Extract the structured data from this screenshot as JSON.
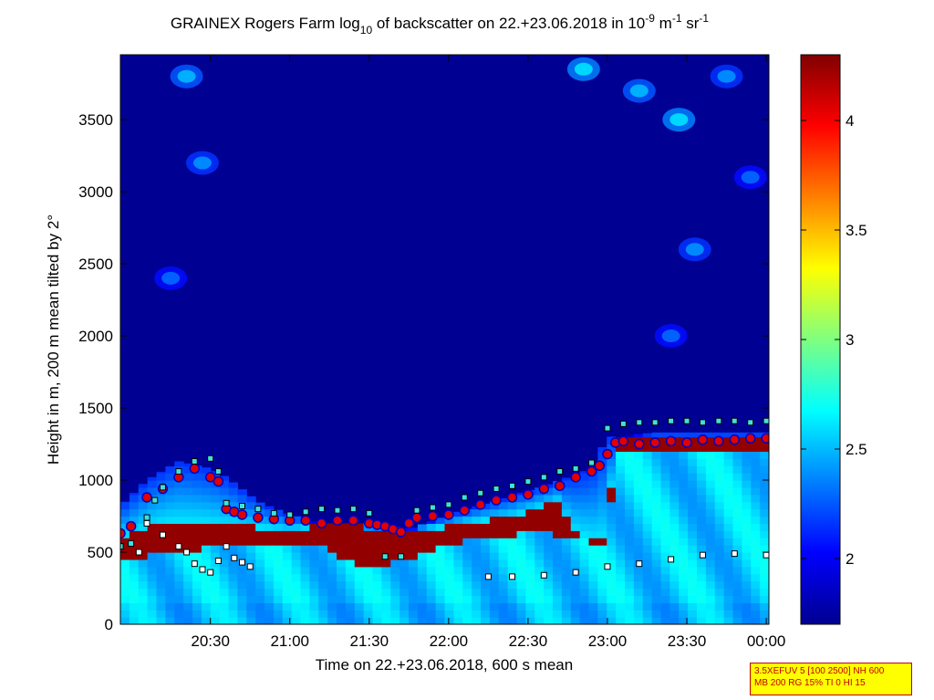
{
  "title": {
    "main": "GRAINEX Rogers Farm log",
    "log_sub": "10",
    "after_log": " of backscatter on 22.+23.06.2018 in 10",
    "exp1": "-9",
    "unit1": " m",
    "exp2": "-1",
    "unit2": " sr",
    "exp3": "-1"
  },
  "info_box": {
    "line1": "3.5XEFUV 5 [100 2500] NH 600",
    "line2": "MB 200 RG 15% TI 0 HI 15"
  },
  "chart_data": {
    "type": "heatmap",
    "xlabel": "Time on 22.+23.06.2018, 600 s mean",
    "ylabel": "Height in m, 200 m mean tilted by 2°",
    "x_unit": "hours after 20:00 (22.06.2018)",
    "xlim": [
      -0.0667,
      4.0167
    ],
    "ylim": [
      0,
      3950
    ],
    "x_ticks": [
      {
        "value": 0.5,
        "label": "20:30"
      },
      {
        "value": 1.0,
        "label": "21:00"
      },
      {
        "value": 1.5,
        "label": "21:30"
      },
      {
        "value": 2.0,
        "label": "22:00"
      },
      {
        "value": 2.5,
        "label": "22:30"
      },
      {
        "value": 3.0,
        "label": "23:00"
      },
      {
        "value": 3.5,
        "label": "23:30"
      },
      {
        "value": 4.0,
        "label": "00:00"
      }
    ],
    "y_ticks": [
      0,
      500,
      1000,
      1500,
      2000,
      2500,
      3000,
      3500
    ],
    "colorbar": {
      "clim": [
        1.7,
        4.3
      ],
      "ticks": [
        "2",
        "2.5",
        "3",
        "3.5",
        "4"
      ],
      "colormap": "jet"
    },
    "background_value": 1.75,
    "aerosol_top_profile": [
      [
        -0.0667,
        820
      ],
      [
        0.1,
        1000
      ],
      [
        0.3,
        1130
      ],
      [
        0.5,
        1080
      ],
      [
        0.6,
        1020
      ],
      [
        0.8,
        850
      ],
      [
        1.0,
        760
      ],
      [
        1.2,
        700
      ],
      [
        1.4,
        700
      ],
      [
        1.55,
        700
      ],
      [
        1.75,
        660
      ],
      [
        2.0,
        760
      ],
      [
        2.3,
        860
      ],
      [
        2.6,
        960
      ],
      [
        2.9,
        1080
      ],
      [
        3.0,
        1300
      ],
      [
        3.3,
        1330
      ],
      [
        3.7,
        1330
      ],
      [
        4.0167,
        1330
      ]
    ],
    "aerosol_layer_base_value": 2.55,
    "strong_layer": {
      "value": 4.25,
      "top": [
        [
          -0.0667,
          600
        ],
        [
          0.05,
          650
        ],
        [
          0.15,
          700
        ],
        [
          0.25,
          720
        ],
        [
          0.4,
          720
        ],
        [
          0.55,
          700
        ],
        [
          0.75,
          680
        ],
        [
          1.0,
          650
        ],
        [
          1.2,
          690
        ],
        [
          1.4,
          690
        ],
        [
          1.5,
          650
        ],
        [
          1.7,
          620
        ],
        [
          1.8,
          650
        ],
        [
          2.0,
          680
        ],
        [
          2.2,
          720
        ],
        [
          2.4,
          750
        ],
        [
          2.6,
          820
        ],
        [
          2.7,
          860
        ],
        [
          2.75,
          700
        ],
        [
          2.8,
          650
        ],
        [
          2.9,
          600
        ],
        [
          3.0,
          600
        ],
        [
          3.05,
          1300
        ],
        [
          3.3,
          1290
        ],
        [
          3.6,
          1280
        ],
        [
          3.9,
          1280
        ],
        [
          4.0167,
          1290
        ]
      ],
      "bottom": [
        [
          -0.0667,
          450
        ],
        [
          0.05,
          460
        ],
        [
          0.2,
          500
        ],
        [
          0.4,
          520
        ],
        [
          0.6,
          540
        ],
        [
          0.8,
          560
        ],
        [
          1.0,
          560
        ],
        [
          1.2,
          560
        ],
        [
          1.4,
          420
        ],
        [
          1.6,
          400
        ],
        [
          1.7,
          440
        ],
        [
          1.8,
          480
        ],
        [
          2.0,
          560
        ],
        [
          2.2,
          600
        ],
        [
          2.4,
          620
        ],
        [
          2.6,
          640
        ],
        [
          2.7,
          620
        ],
        [
          2.8,
          600
        ],
        [
          2.9,
          560
        ],
        [
          3.0,
          560
        ],
        [
          3.05,
          1190
        ],
        [
          3.3,
          1180
        ],
        [
          3.6,
          1190
        ],
        [
          3.9,
          1190
        ],
        [
          4.0167,
          1200
        ]
      ]
    },
    "clouds": [
      {
        "t": 0.35,
        "h": 3800,
        "value": 2.5
      },
      {
        "t": 0.45,
        "h": 3200,
        "value": 2.4
      },
      {
        "t": 0.25,
        "h": 2400,
        "value": 2.3
      },
      {
        "t": 2.85,
        "h": 3850,
        "value": 2.6
      },
      {
        "t": 3.2,
        "h": 3700,
        "value": 2.5
      },
      {
        "t": 3.45,
        "h": 3500,
        "value": 2.6
      },
      {
        "t": 3.55,
        "h": 2600,
        "value": 2.4
      },
      {
        "t": 3.4,
        "h": 2000,
        "value": 2.3
      },
      {
        "t": 3.75,
        "h": 3800,
        "value": 2.4
      },
      {
        "t": 3.9,
        "h": 3100,
        "value": 2.3
      }
    ],
    "series": [
      {
        "kind": "red-dots",
        "x": [
          -0.0667,
          0.0,
          0.1,
          0.2,
          0.3,
          0.4,
          0.5,
          0.55,
          0.6,
          0.65,
          0.7,
          0.8,
          0.9,
          1.0,
          1.1,
          1.2,
          1.3,
          1.4,
          1.5,
          1.55,
          1.6,
          1.65,
          1.7,
          1.75,
          1.8,
          1.9,
          2.0,
          2.1,
          2.2,
          2.3,
          2.4,
          2.5,
          2.6,
          2.7,
          2.8,
          2.9,
          2.95,
          3.0,
          3.05,
          3.1,
          3.2,
          3.3,
          3.4,
          3.5,
          3.6,
          3.7,
          3.8,
          3.9,
          4.0
        ],
        "y": [
          630,
          680,
          880,
          940,
          1020,
          1080,
          1020,
          990,
          800,
          780,
          760,
          740,
          730,
          720,
          720,
          700,
          720,
          720,
          700,
          690,
          680,
          660,
          640,
          700,
          740,
          750,
          760,
          790,
          830,
          860,
          880,
          900,
          940,
          960,
          1020,
          1060,
          1100,
          1180,
          1260,
          1270,
          1250,
          1260,
          1270,
          1260,
          1280,
          1270,
          1280,
          1290,
          1290
        ]
      },
      {
        "kind": "cyan-squares",
        "x": [
          -0.0667,
          0.0,
          0.1,
          0.15,
          0.2,
          0.3,
          0.4,
          0.5,
          0.55,
          0.6,
          0.7,
          0.8,
          0.9,
          1.0,
          1.1,
          1.2,
          1.3,
          1.4,
          1.5,
          1.6,
          1.7,
          1.8,
          1.9,
          2.0,
          2.1,
          2.2,
          2.3,
          2.4,
          2.5,
          2.6,
          2.7,
          2.8,
          2.9,
          3.0,
          3.1,
          3.2,
          3.3,
          3.4,
          3.5,
          3.6,
          3.7,
          3.8,
          3.9,
          4.0
        ],
        "y": [
          540,
          560,
          740,
          860,
          950,
          1060,
          1130,
          1150,
          1060,
          840,
          820,
          800,
          770,
          760,
          780,
          800,
          790,
          800,
          770,
          470,
          470,
          790,
          810,
          830,
          880,
          910,
          940,
          960,
          990,
          1020,
          1060,
          1080,
          1120,
          1360,
          1390,
          1400,
          1400,
          1410,
          1410,
          1400,
          1410,
          1410,
          1400,
          1410
        ]
      },
      {
        "kind": "white-squares",
        "x": [
          0.05,
          0.1,
          0.2,
          0.3,
          0.35,
          0.4,
          0.45,
          0.5,
          0.55,
          0.6,
          0.65,
          0.7,
          0.75,
          2.25,
          2.4,
          2.6,
          2.8,
          3.0,
          3.2,
          3.4,
          3.6,
          3.8,
          4.0
        ],
        "y": [
          500,
          700,
          620,
          540,
          500,
          420,
          380,
          360,
          440,
          540,
          460,
          430,
          400,
          330,
          330,
          340,
          360,
          400,
          420,
          450,
          480,
          490,
          480
        ]
      }
    ]
  }
}
